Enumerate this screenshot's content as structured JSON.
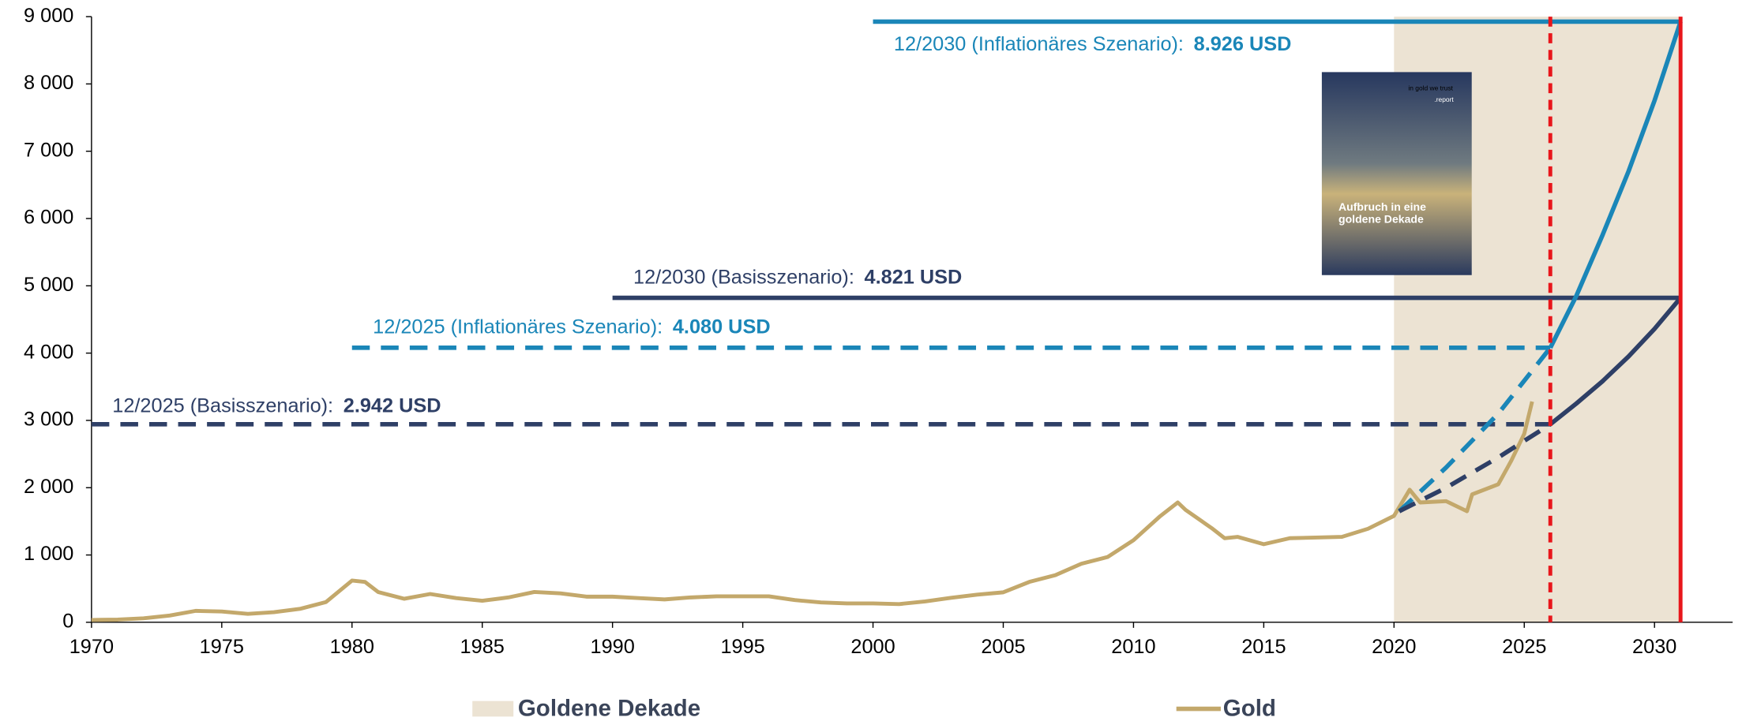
{
  "chart_data": {
    "type": "line",
    "xlim": [
      1970,
      2033
    ],
    "ylim": [
      0,
      9000
    ],
    "xticks": [
      1970,
      1975,
      1980,
      1985,
      1990,
      1995,
      2000,
      2005,
      2010,
      2015,
      2020,
      2025,
      2030
    ],
    "yticks": [
      0,
      {
        "value": 1000,
        "label": "1 000"
      },
      {
        "value": 2000,
        "label": "2 000"
      },
      {
        "value": 3000,
        "label": "3 000"
      },
      {
        "value": 4000,
        "label": "4 000"
      },
      {
        "value": 5000,
        "label": "5 000"
      },
      {
        "value": 6000,
        "label": "6 000"
      },
      {
        "value": 7000,
        "label": "7 000"
      },
      {
        "value": 8000,
        "label": "8 000"
      },
      {
        "value": 9000,
        "label": "9 000"
      }
    ],
    "shaded_region": {
      "name": "Goldene Dekade",
      "x": [
        2020,
        2031
      ],
      "color": "#ece3d3"
    },
    "vlines": [
      {
        "x": 2026,
        "style": "dashed",
        "color": "#e8161b"
      },
      {
        "x": 2031,
        "style": "solid",
        "color": "#e8161b"
      }
    ],
    "series": [
      {
        "name": "Gold",
        "color": "#c3a86b",
        "x": [
          1970,
          1971,
          1972,
          1973,
          1974,
          1975,
          1976,
          1977,
          1978,
          1979,
          1980,
          1980.5,
          1981,
          1982,
          1983,
          1984,
          1985,
          1986,
          1987,
          1988,
          1989,
          1990,
          1991,
          1992,
          1993,
          1994,
          1995,
          1996,
          1997,
          1998,
          1999,
          2000,
          2001,
          2002,
          2003,
          2004,
          2005,
          2006,
          2007,
          2008,
          2009,
          2010,
          2011,
          2011.7,
          2012,
          2013,
          2013.5,
          2014,
          2015,
          2016,
          2017,
          2018,
          2019,
          2020,
          2020.6,
          2021,
          2022,
          2022.8,
          2023,
          2024,
          2024.5,
          2025,
          2025.3
        ],
        "values": [
          35,
          40,
          60,
          100,
          170,
          160,
          125,
          150,
          200,
          300,
          620,
          600,
          450,
          350,
          420,
          360,
          320,
          370,
          450,
          430,
          380,
          380,
          360,
          340,
          370,
          385,
          385,
          385,
          330,
          295,
          280,
          280,
          270,
          310,
          365,
          410,
          445,
          600,
          700,
          870,
          970,
          1220,
          1570,
          1780,
          1670,
          1400,
          1250,
          1270,
          1160,
          1250,
          1260,
          1270,
          1390,
          1580,
          1970,
          1780,
          1800,
          1650,
          1900,
          2050,
          2400,
          2800,
          3280
        ]
      },
      {
        "color": "#1a86b8",
        "style": "dashed",
        "x": [
          2020.2,
          2022,
          2024,
          2026
        ],
        "values": [
          1650,
          2300,
          3100,
          4080
        ]
      },
      {
        "color": "#1a86b8",
        "style": "solid",
        "x": [
          2026,
          2027,
          2028,
          2029,
          2030,
          2031
        ],
        "values": [
          4080,
          4850,
          5750,
          6700,
          7750,
          8926
        ]
      },
      {
        "color": "#2e3f66",
        "style": "dashed",
        "x": [
          2020.2,
          2022,
          2024,
          2026
        ],
        "values": [
          1650,
          2000,
          2450,
          2942
        ]
      },
      {
        "color": "#2e3f66",
        "style": "solid",
        "x": [
          2026,
          2027,
          2028,
          2029,
          2030,
          2031
        ],
        "values": [
          2942,
          3250,
          3580,
          3950,
          4360,
          4821
        ]
      }
    ],
    "scenarios": [
      {
        "label": "12/2025 (Basisszenario): ",
        "value_label": "2.942 USD",
        "color": "#2e3f66",
        "style": "dashed",
        "x": [
          1970,
          2026
        ],
        "values": [
          2942,
          2942
        ]
      },
      {
        "label": "12/2025 (Inflationäres Szenario): ",
        "value_label": "4.080 USD",
        "color": "#1a86b8",
        "style": "dashed",
        "x": [
          1980,
          2026
        ],
        "values": [
          4080,
          4080
        ]
      },
      {
        "label": "12/2030 (Basisszenario): ",
        "value_label": "4.821 USD",
        "color": "#2e3f66",
        "style": "solid",
        "x": [
          1990,
          2031
        ],
        "values": [
          4821,
          4821
        ]
      },
      {
        "label": "12/2030 (Inflationäres Szenario): ",
        "value_label": "8.926 USD",
        "color": "#1a86b8",
        "style": "solid",
        "x": [
          2000,
          2031
        ],
        "values": [
          8926,
          8926
        ]
      }
    ],
    "inset": {
      "brand": "in gold we trust",
      "tag": ".report",
      "title": "Aufbruch in eine goldene Dekade"
    }
  }
}
